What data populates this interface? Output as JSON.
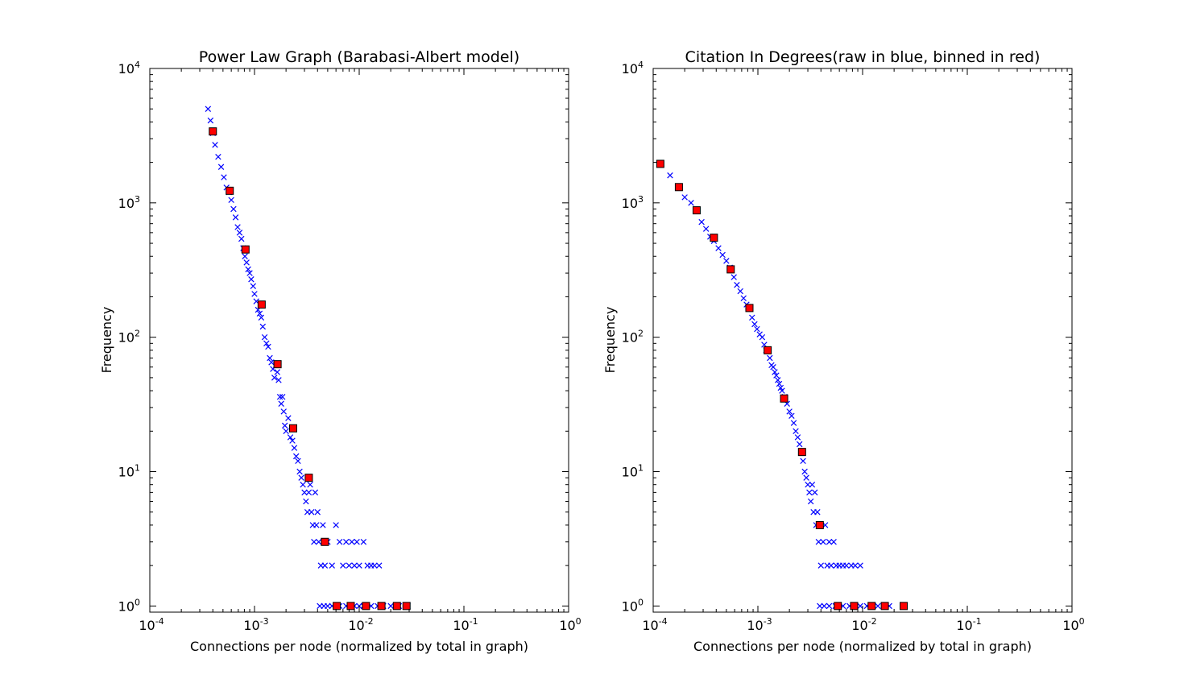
{
  "chart_data": [
    {
      "type": "scatter",
      "title": "Power Law Graph (Barabasi-Albert model)",
      "xlabel": "Connections per node (normalized by total in graph)",
      "ylabel": "Frequency",
      "xscale": "log",
      "yscale": "log",
      "xlim": [
        0.0001,
        1
      ],
      "ylim": [
        0.9,
        10000
      ],
      "x_ticks": [
        {
          "base": "10",
          "exp": "-4"
        },
        {
          "base": "10",
          "exp": "-3"
        },
        {
          "base": "10",
          "exp": "-2"
        },
        {
          "base": "10",
          "exp": "-1"
        },
        {
          "base": "10",
          "exp": "0"
        }
      ],
      "y_ticks": [
        {
          "base": "10",
          "exp": "0"
        },
        {
          "base": "10",
          "exp": "1"
        },
        {
          "base": "10",
          "exp": "2"
        },
        {
          "base": "10",
          "exp": "3"
        },
        {
          "base": "10",
          "exp": "4"
        }
      ],
      "series": [
        {
          "marker": "x",
          "color": "#0000ff",
          "points": [
            [
              0.00036,
              5000
            ],
            [
              0.00038,
              4100
            ],
            [
              0.0004,
              3300
            ],
            [
              0.00042,
              2700
            ],
            [
              0.00045,
              2200
            ],
            [
              0.00048,
              1850
            ],
            [
              0.00051,
              1550
            ],
            [
              0.00054,
              1300
            ],
            [
              0.00057,
              1200
            ],
            [
              0.0006,
              1050
            ],
            [
              0.00063,
              900
            ],
            [
              0.00066,
              780
            ],
            [
              0.00069,
              660
            ],
            [
              0.00072,
              600
            ],
            [
              0.00075,
              540
            ],
            [
              0.00078,
              460
            ],
            [
              0.00081,
              400
            ],
            [
              0.00084,
              360
            ],
            [
              0.00087,
              320
            ],
            [
              0.0009,
              300
            ],
            [
              0.00093,
              270
            ],
            [
              0.00097,
              240
            ],
            [
              0.001,
              210
            ],
            [
              0.00104,
              185
            ],
            [
              0.00108,
              160
            ],
            [
              0.00112,
              150
            ],
            [
              0.00116,
              140
            ],
            [
              0.0012,
              120
            ],
            [
              0.00125,
              100
            ],
            [
              0.0013,
              90
            ],
            [
              0.00135,
              85
            ],
            [
              0.0014,
              70
            ],
            [
              0.00145,
              65
            ],
            [
              0.0015,
              58
            ],
            [
              0.00155,
              50
            ],
            [
              0.0016,
              62
            ],
            [
              0.00165,
              55
            ],
            [
              0.0017,
              48
            ],
            [
              0.00175,
              36
            ],
            [
              0.0018,
              32
            ],
            [
              0.00185,
              36
            ],
            [
              0.0019,
              28
            ],
            [
              0.00195,
              22
            ],
            [
              0.002,
              20
            ],
            [
              0.0021,
              25
            ],
            [
              0.0022,
              18
            ],
            [
              0.0023,
              17
            ],
            [
              0.0024,
              15
            ],
            [
              0.0025,
              13
            ],
            [
              0.0026,
              12
            ],
            [
              0.0027,
              10
            ],
            [
              0.0028,
              9
            ],
            [
              0.0029,
              8
            ],
            [
              0.003,
              7
            ],
            [
              0.0031,
              6
            ],
            [
              0.0032,
              5
            ],
            [
              0.0033,
              7
            ],
            [
              0.0034,
              8
            ],
            [
              0.0035,
              5
            ],
            [
              0.0036,
              4
            ],
            [
              0.0037,
              3
            ],
            [
              0.0038,
              7
            ],
            [
              0.0039,
              4
            ],
            [
              0.004,
              5
            ],
            [
              0.0041,
              3
            ],
            [
              0.0043,
              2
            ],
            [
              0.0045,
              4
            ],
            [
              0.0047,
              2
            ],
            [
              0.005,
              3
            ],
            [
              0.0055,
              2
            ],
            [
              0.006,
              4
            ],
            [
              0.0065,
              3
            ],
            [
              0.007,
              2
            ],
            [
              0.0075,
              3
            ],
            [
              0.008,
              2
            ],
            [
              0.0085,
              3
            ],
            [
              0.009,
              2
            ],
            [
              0.0095,
              3
            ],
            [
              0.01,
              2
            ],
            [
              0.011,
              3
            ],
            [
              0.012,
              2
            ],
            [
              0.013,
              2
            ],
            [
              0.014,
              2
            ],
            [
              0.0155,
              2
            ],
            [
              0.0042,
              1
            ],
            [
              0.0046,
              1
            ],
            [
              0.005,
              1
            ],
            [
              0.0055,
              1
            ],
            [
              0.0065,
              1
            ],
            [
              0.0075,
              1
            ],
            [
              0.009,
              1
            ],
            [
              0.01,
              1
            ],
            [
              0.011,
              1
            ],
            [
              0.013,
              1
            ],
            [
              0.015,
              1
            ],
            [
              0.017,
              1
            ],
            [
              0.02,
              1
            ],
            [
              0.024,
              1
            ],
            [
              0.029,
              1
            ]
          ]
        },
        {
          "marker": "s",
          "color": "#ff0000",
          "points": [
            [
              0.0004,
              3400
            ],
            [
              0.00058,
              1230
            ],
            [
              0.00082,
              450
            ],
            [
              0.00117,
              175
            ],
            [
              0.00166,
              63
            ],
            [
              0.00234,
              21
            ],
            [
              0.0033,
              9
            ],
            [
              0.0047,
              3
            ],
            [
              0.0061,
              1
            ],
            [
              0.0083,
              1
            ],
            [
              0.0116,
              1
            ],
            [
              0.0163,
              1
            ],
            [
              0.0229,
              1
            ],
            [
              0.0283,
              1
            ]
          ]
        }
      ]
    },
    {
      "type": "scatter",
      "title": "Citation In Degrees(raw in blue, binned in red)",
      "xlabel": "Connections per node (normalized by total in graph)",
      "ylabel": "Frequency",
      "xscale": "log",
      "yscale": "log",
      "xlim": [
        0.0001,
        1
      ],
      "ylim": [
        0.9,
        10000
      ],
      "x_ticks": [
        {
          "base": "10",
          "exp": "-4"
        },
        {
          "base": "10",
          "exp": "-3"
        },
        {
          "base": "10",
          "exp": "-2"
        },
        {
          "base": "10",
          "exp": "-1"
        },
        {
          "base": "10",
          "exp": "0"
        }
      ],
      "y_ticks": [
        {
          "base": "10",
          "exp": "0"
        },
        {
          "base": "10",
          "exp": "1"
        },
        {
          "base": "10",
          "exp": "2"
        },
        {
          "base": "10",
          "exp": "3"
        },
        {
          "base": "10",
          "exp": "4"
        }
      ],
      "series": [
        {
          "marker": "x",
          "color": "#0000ff",
          "points": [
            [
              0.000117,
              1950
            ],
            [
              0.000145,
              1600
            ],
            [
              0.000172,
              1300
            ],
            [
              0.0002,
              1100
            ],
            [
              0.00023,
              1000
            ],
            [
              0.00026,
              870
            ],
            [
              0.00029,
              720
            ],
            [
              0.00032,
              640
            ],
            [
              0.00035,
              560
            ],
            [
              0.00038,
              520
            ],
            [
              0.00042,
              460
            ],
            [
              0.00046,
              410
            ],
            [
              0.0005,
              370
            ],
            [
              0.00054,
              330
            ],
            [
              0.00059,
              280
            ],
            [
              0.00063,
              245
            ],
            [
              0.00068,
              220
            ],
            [
              0.00073,
              195
            ],
            [
              0.00078,
              175
            ],
            [
              0.00083,
              165
            ],
            [
              0.00088,
              140
            ],
            [
              0.00093,
              125
            ],
            [
              0.00098,
              115
            ],
            [
              0.00104,
              105
            ],
            [
              0.0011,
              100
            ],
            [
              0.00115,
              88
            ],
            [
              0.0012,
              80
            ],
            [
              0.0013,
              70
            ],
            [
              0.00135,
              62
            ],
            [
              0.0014,
              60
            ],
            [
              0.00145,
              55
            ],
            [
              0.0015,
              52
            ],
            [
              0.00155,
              48
            ],
            [
              0.0016,
              45
            ],
            [
              0.00165,
              42
            ],
            [
              0.0017,
              40
            ],
            [
              0.0018,
              36
            ],
            [
              0.0019,
              32
            ],
            [
              0.002,
              28
            ],
            [
              0.0021,
              26
            ],
            [
              0.0022,
              23
            ],
            [
              0.0023,
              20
            ],
            [
              0.0024,
              18
            ],
            [
              0.0025,
              16
            ],
            [
              0.0026,
              14
            ],
            [
              0.0027,
              12
            ],
            [
              0.0028,
              10
            ],
            [
              0.0029,
              9
            ],
            [
              0.003,
              8
            ],
            [
              0.0031,
              7
            ],
            [
              0.0032,
              6
            ],
            [
              0.0033,
              8
            ],
            [
              0.0034,
              5
            ],
            [
              0.0035,
              7
            ],
            [
              0.0036,
              4
            ],
            [
              0.0037,
              5
            ],
            [
              0.0038,
              3
            ],
            [
              0.0039,
              4
            ],
            [
              0.004,
              2
            ],
            [
              0.0042,
              3
            ],
            [
              0.0044,
              4
            ],
            [
              0.0046,
              2
            ],
            [
              0.0048,
              3
            ],
            [
              0.005,
              2
            ],
            [
              0.0053,
              3
            ],
            [
              0.0056,
              2
            ],
            [
              0.006,
              2
            ],
            [
              0.0065,
              2
            ],
            [
              0.007,
              2
            ],
            [
              0.0078,
              2
            ],
            [
              0.0085,
              2
            ],
            [
              0.0095,
              2
            ],
            [
              0.0039,
              1
            ],
            [
              0.0043,
              1
            ],
            [
              0.0048,
              1
            ],
            [
              0.0055,
              1
            ],
            [
              0.0065,
              1
            ],
            [
              0.0075,
              1
            ],
            [
              0.0085,
              1
            ],
            [
              0.0095,
              1
            ],
            [
              0.011,
              1
            ],
            [
              0.014,
              1
            ],
            [
              0.018,
              1
            ]
          ]
        },
        {
          "marker": "s",
          "color": "#ff0000",
          "points": [
            [
              0.000117,
              1950
            ],
            [
              0.000176,
              1310
            ],
            [
              0.00026,
              880
            ],
            [
              0.00038,
              550
            ],
            [
              0.00055,
              320
            ],
            [
              0.00083,
              165
            ],
            [
              0.00124,
              80
            ],
            [
              0.00178,
              35
            ],
            [
              0.00264,
              14
            ],
            [
              0.0039,
              4
            ],
            [
              0.0058,
              1
            ],
            [
              0.0083,
              1
            ],
            [
              0.0122,
              1
            ],
            [
              0.0163,
              1
            ],
            [
              0.0247,
              1
            ]
          ]
        }
      ]
    }
  ]
}
